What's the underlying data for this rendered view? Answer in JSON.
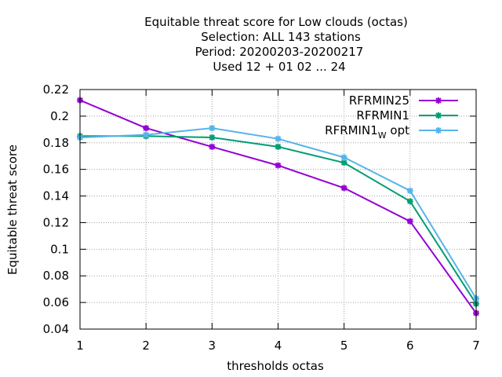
{
  "chart_data": {
    "type": "line",
    "title_lines": [
      "Equitable threat score  for Low clouds (octas)",
      "Selection: ALL    143 stations",
      "Period: 20200203-20200217",
      "Used  12 + 01 02 ... 24"
    ],
    "xlabel": "thresholds octas",
    "ylabel": "Equitable threat score",
    "xlim": [
      1,
      7
    ],
    "ylim": [
      0.04,
      0.22
    ],
    "xticks": [
      1,
      2,
      3,
      4,
      5,
      6,
      7
    ],
    "yticks": [
      0.04,
      0.06,
      0.08,
      0.1,
      0.12,
      0.14,
      0.16,
      0.18,
      0.2,
      0.22
    ],
    "ytick_labels": [
      "0.04",
      "0.06",
      "0.08",
      "0.1",
      "0.12",
      "0.14",
      "0.16",
      "0.18",
      "0.2",
      "0.22"
    ],
    "grid": true,
    "legend_position": "top-right",
    "x": [
      1,
      2,
      3,
      4,
      5,
      6,
      7
    ],
    "series": [
      {
        "name": "RFRMIN25",
        "color": "#9400d3",
        "values": [
          0.212,
          0.191,
          0.177,
          0.163,
          0.146,
          0.121,
          0.052
        ]
      },
      {
        "name": "RFRMIN1",
        "color": "#009e73",
        "values": [
          0.185,
          0.185,
          0.184,
          0.177,
          0.165,
          0.136,
          0.059
        ]
      },
      {
        "name": "RFRMIN1_W opt",
        "legend_main": "RFRMIN1",
        "legend_sub": "W",
        "legend_rest": "opt",
        "color": "#56b4e9",
        "values": [
          0.184,
          0.186,
          0.191,
          0.183,
          0.169,
          0.144,
          0.063
        ]
      }
    ]
  }
}
